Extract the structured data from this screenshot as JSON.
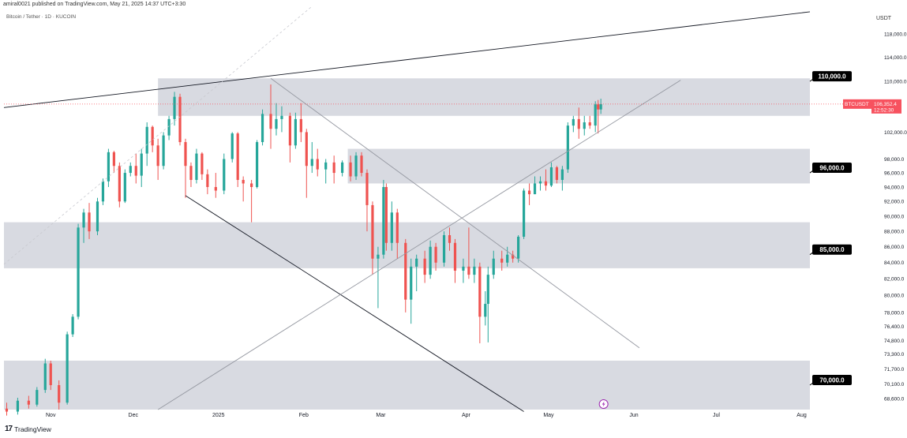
{
  "header": {
    "publisher": "amiral0021 published on TradingView.com, May 21, 2025 14:37 UTC+3:30",
    "symbol": "Bitcoin / Tether · 1D · KUCOIN",
    "currency": "USDT",
    "brand": "TradingView"
  },
  "colors": {
    "up": "#26a69a",
    "down": "#ef5350",
    "zone": "#d1d4dc",
    "trendline": "#131722",
    "channel": "#9598a1",
    "price_label": "#f7525f",
    "level_label": "#000000"
  },
  "chart_data": {
    "type": "candlestick",
    "symbol": "BTCUSDT",
    "y_axis": {
      "scale": "log",
      "ticks": [
        "118,000.0",
        "114,000.0",
        "110,000.0",
        "102,000.0",
        "98,000.0",
        "96,000.0",
        "94,000.0",
        "92,000.0",
        "90,000.0",
        "88,000.0",
        "86,000.0",
        "84,000.0",
        "82,000.0",
        "80,000.0",
        "78,000.0",
        "76,400.0",
        "74,800.0",
        "73,300.0",
        "71,700.0",
        "70,100.0",
        "68,600.0"
      ],
      "range": [
        67500,
        123000
      ]
    },
    "x_axis": {
      "ticks": [
        "Nov",
        "Dec",
        "2025",
        "Feb",
        "Mar",
        "Apr",
        "May",
        "Jun",
        "Jul",
        "Aug"
      ],
      "tick_dates": [
        "2024-11-01",
        "2024-12-01",
        "2025-01-01",
        "2025-02-01",
        "2025-03-01",
        "2025-04-01",
        "2025-05-01",
        "2025-06-01",
        "2025-07-01",
        "2025-08-01"
      ],
      "range": [
        "2024-10-15",
        "2025-08-04"
      ]
    },
    "current_price": {
      "label": "BTCUSDT",
      "value": "106,352.4",
      "countdown": "12:52:30",
      "price": 106352
    },
    "zones": [
      {
        "low": 104500,
        "high": 110500,
        "start": "2024-12-10",
        "end": "2025-08-04"
      },
      {
        "low": 94500,
        "high": 99500,
        "start": "2025-02-17",
        "end": "2025-08-04"
      },
      {
        "low": 83300,
        "high": 89200,
        "start": "2024-10-15",
        "end": "2025-08-04"
      },
      {
        "low": 67500,
        "high": 72600,
        "start": "2024-10-15",
        "end": "2025-08-04"
      }
    ],
    "levels": [
      {
        "label": "110,000.0",
        "price": 110000
      },
      {
        "label": "96,000.0",
        "price": 96000
      },
      {
        "label": "85,000.0",
        "price": 85000
      },
      {
        "label": "70,000.0",
        "price": 70000
      }
    ],
    "trendlines": [
      {
        "style": "solid-dark",
        "points": [
          [
            "2024-10-15",
            105800
          ],
          [
            "2025-08-04",
            122000
          ]
        ]
      },
      {
        "style": "solid-dark",
        "points": [
          [
            "2024-12-20",
            92800
          ],
          [
            "2025-04-22",
            67300
          ]
        ]
      },
      {
        "style": "solid-gray",
        "points": [
          [
            "2025-01-20",
            110500
          ],
          [
            "2025-06-03",
            74000
          ]
        ]
      },
      {
        "style": "solid-gray",
        "points": [
          [
            "2024-12-10",
            67500
          ],
          [
            "2025-06-18",
            110200
          ]
        ]
      },
      {
        "style": "dashed-gray",
        "points": [
          [
            "2024-10-15",
            83800
          ],
          [
            "2025-02-04",
            123000
          ]
        ]
      }
    ],
    "candles_sampled": [
      [
        "2024-10-16",
        67600,
        68200,
        66900,
        67300
      ],
      [
        "2024-10-20",
        67300,
        68700,
        67000,
        68400
      ],
      [
        "2024-10-24",
        68400,
        68900,
        67600,
        68000
      ],
      [
        "2024-10-27",
        68000,
        69800,
        67800,
        69500
      ],
      [
        "2024-10-30",
        69500,
        72800,
        69200,
        72300
      ],
      [
        "2024-11-01",
        72300,
        72600,
        69500,
        70000
      ],
      [
        "2024-11-04",
        70000,
        70500,
        67500,
        68200
      ],
      [
        "2024-11-07",
        68200,
        75800,
        68000,
        75500
      ],
      [
        "2024-11-09",
        75500,
        77800,
        75200,
        77500
      ],
      [
        "2024-11-11",
        77500,
        89000,
        77200,
        88500
      ],
      [
        "2024-11-13",
        88500,
        91000,
        86500,
        90500
      ],
      [
        "2024-11-15",
        90500,
        91800,
        87000,
        88000
      ],
      [
        "2024-11-18",
        88000,
        92500,
        87500,
        92000
      ],
      [
        "2024-11-20",
        92000,
        95200,
        91500,
        94800
      ],
      [
        "2024-11-22",
        94800,
        99500,
        94000,
        99000
      ],
      [
        "2024-11-24",
        99000,
        99200,
        96000,
        97000
      ],
      [
        "2024-11-26",
        97000,
        97500,
        91200,
        92000
      ],
      [
        "2024-11-28",
        92000,
        96500,
        91800,
        96000
      ],
      [
        "2024-11-30",
        96000,
        97500,
        95500,
        97000
      ],
      [
        "2024-12-02",
        97000,
        98800,
        94500,
        95600
      ],
      [
        "2024-12-04",
        95600,
        99500,
        94000,
        98800
      ],
      [
        "2024-12-06",
        98800,
        103500,
        97000,
        102800
      ],
      [
        "2024-12-08",
        102800,
        103000,
        99000,
        100000
      ],
      [
        "2024-12-10",
        100000,
        101000,
        95000,
        97000
      ],
      [
        "2024-12-12",
        97000,
        102000,
        96500,
        101500
      ],
      [
        "2024-12-14",
        101500,
        104500,
        100800,
        104000
      ],
      [
        "2024-12-16",
        104000,
        108300,
        103000,
        107500
      ],
      [
        "2024-12-18",
        107500,
        108000,
        100000,
        100500
      ],
      [
        "2024-12-20",
        100500,
        101000,
        92500,
        97000
      ],
      [
        "2024-12-22",
        97000,
        97500,
        94000,
        95000
      ],
      [
        "2024-12-24",
        95000,
        99500,
        94500,
        98800
      ],
      [
        "2024-12-26",
        98800,
        99000,
        95000,
        95800
      ],
      [
        "2024-12-28",
        95800,
        96500,
        93000,
        94000
      ],
      [
        "2024-12-31",
        94000,
        96000,
        92500,
        93500
      ],
      [
        "2025-01-03",
        93500,
        98800,
        93000,
        98000
      ],
      [
        "2025-01-06",
        98000,
        102000,
        97500,
        101800
      ],
      [
        "2025-01-08",
        101800,
        102000,
        94000,
        95000
      ],
      [
        "2025-01-10",
        95000,
        95500,
        92000,
        94500
      ],
      [
        "2025-01-13",
        94500,
        95000,
        89200,
        94000
      ],
      [
        "2025-01-15",
        94000,
        100800,
        93800,
        100500
      ],
      [
        "2025-01-17",
        100500,
        105500,
        100000,
        104800
      ],
      [
        "2025-01-20",
        104800,
        109500,
        99500,
        102500
      ],
      [
        "2025-01-22",
        102500,
        106500,
        101500,
        104000
      ],
      [
        "2025-01-24",
        104000,
        106000,
        102000,
        104500
      ],
      [
        "2025-01-27",
        104500,
        105000,
        97500,
        100000
      ],
      [
        "2025-01-29",
        100000,
        105000,
        99500,
        104000
      ],
      [
        "2025-01-31",
        104000,
        106500,
        100500,
        102000
      ],
      [
        "2025-02-02",
        102000,
        102500,
        92500,
        97000
      ],
      [
        "2025-02-04",
        97000,
        100500,
        96000,
        98000
      ],
      [
        "2025-02-06",
        98000,
        99500,
        95500,
        96500
      ],
      [
        "2025-02-09",
        96500,
        98000,
        94500,
        97500
      ],
      [
        "2025-02-12",
        97500,
        98500,
        94500,
        96000
      ],
      [
        "2025-02-15",
        96000,
        97800,
        95500,
        97500
      ],
      [
        "2025-02-18",
        97500,
        98500,
        94800,
        95500
      ],
      [
        "2025-02-20",
        95500,
        99000,
        95000,
        98500
      ],
      [
        "2025-02-22",
        98500,
        99000,
        95500,
        96000
      ],
      [
        "2025-02-24",
        96000,
        96500,
        88000,
        91500
      ],
      [
        "2025-02-26",
        91500,
        92000,
        82500,
        84500
      ],
      [
        "2025-02-28",
        84500,
        86000,
        78500,
        85000
      ],
      [
        "2025-03-02",
        85000,
        95000,
        84500,
        94000
      ],
      [
        "2025-03-03",
        94000,
        94500,
        85500,
        86500
      ],
      [
        "2025-03-05",
        86500,
        92000,
        85500,
        90500
      ],
      [
        "2025-03-07",
        90500,
        91000,
        84500,
        86500
      ],
      [
        "2025-03-10",
        86500,
        87000,
        78000,
        79500
      ],
      [
        "2025-03-12",
        79500,
        84500,
        76700,
        83500
      ],
      [
        "2025-03-14",
        83500,
        85000,
        80500,
        84500
      ],
      [
        "2025-03-17",
        84500,
        85500,
        81500,
        82500
      ],
      [
        "2025-03-19",
        82500,
        86800,
        82000,
        86000
      ],
      [
        "2025-03-21",
        86000,
        86500,
        83000,
        84000
      ],
      [
        "2025-03-24",
        84000,
        88000,
        83500,
        87500
      ],
      [
        "2025-03-26",
        87500,
        88500,
        85500,
        86500
      ],
      [
        "2025-03-28",
        86500,
        87000,
        81500,
        83000
      ],
      [
        "2025-03-31",
        83000,
        84500,
        81500,
        83500
      ],
      [
        "2025-04-02",
        83500,
        88500,
        82000,
        82500
      ],
      [
        "2025-04-04",
        82500,
        84500,
        81500,
        83500
      ],
      [
        "2025-04-06",
        83500,
        84000,
        74500,
        77500
      ],
      [
        "2025-04-08",
        77500,
        80500,
        76500,
        79000
      ],
      [
        "2025-04-09",
        79000,
        83500,
        74600,
        82500
      ],
      [
        "2025-04-11",
        82500,
        85500,
        82000,
        84500
      ],
      [
        "2025-04-14",
        84500,
        85500,
        83000,
        84000
      ],
      [
        "2025-04-16",
        84000,
        86000,
        83500,
        85000
      ],
      [
        "2025-04-18",
        85000,
        85500,
        84000,
        84500
      ],
      [
        "2025-04-20",
        84500,
        87500,
        84000,
        87300
      ],
      [
        "2025-04-22",
        87300,
        93800,
        87000,
        93500
      ],
      [
        "2025-04-24",
        93500,
        94500,
        91500,
        93000
      ],
      [
        "2025-04-26",
        93000,
        95500,
        93000,
        94500
      ],
      [
        "2025-04-28",
        94500,
        95500,
        93500,
        94800
      ],
      [
        "2025-04-30",
        94800,
        96500,
        93500,
        94200
      ],
      [
        "2025-05-02",
        94200,
        97500,
        94000,
        96800
      ],
      [
        "2025-05-04",
        96800,
        97000,
        94500,
        95000
      ],
      [
        "2025-05-06",
        95000,
        97000,
        93500,
        96500
      ],
      [
        "2025-05-08",
        96500,
        103500,
        96000,
        103000
      ],
      [
        "2025-05-10",
        103000,
        104500,
        102000,
        104000
      ],
      [
        "2025-05-12",
        104000,
        105800,
        101000,
        102500
      ],
      [
        "2025-05-14",
        102500,
        104500,
        101500,
        103500
      ],
      [
        "2025-05-16",
        103500,
        104500,
        102500,
        103000
      ],
      [
        "2025-05-18",
        103000,
        106800,
        102000,
        106300
      ],
      [
        "2025-05-19",
        106300,
        107000,
        101800,
        105500
      ],
      [
        "2025-05-20",
        105500,
        107200,
        104800,
        106352
      ]
    ]
  }
}
